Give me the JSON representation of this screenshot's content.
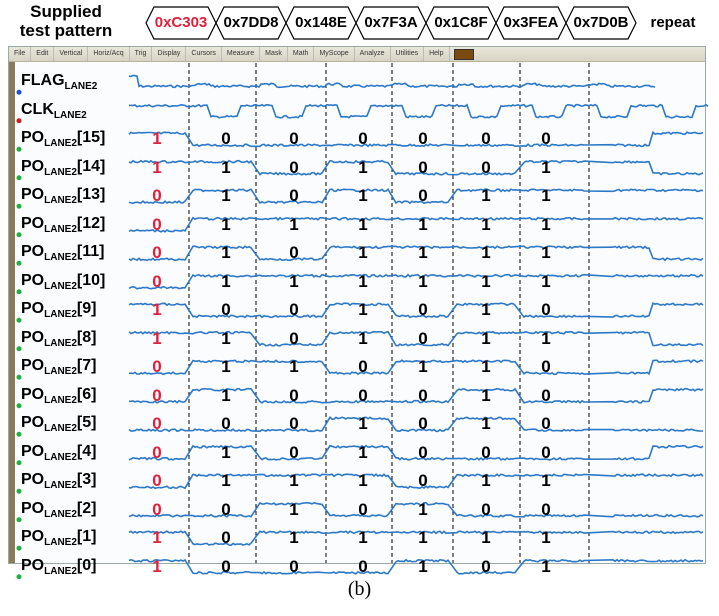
{
  "header": {
    "line1": "Supplied",
    "line2": "test pattern"
  },
  "patterns": [
    {
      "label": "0xC303",
      "color": "#e0203a"
    },
    {
      "label": "0x7DD8",
      "color": "#000000"
    },
    {
      "label": "0x148E",
      "color": "#000000"
    },
    {
      "label": "0x7F3A",
      "color": "#000000"
    },
    {
      "label": "0x1C8F",
      "color": "#000000"
    },
    {
      "label": "0x3FEA",
      "color": "#000000"
    },
    {
      "label": "0x7D0B",
      "color": "#000000"
    },
    {
      "label": "repeat",
      "color": "#000000"
    }
  ],
  "menu": [
    "File",
    "Edit",
    "Vertical",
    "Horiz/Acq",
    "Trig",
    "Display",
    "Cursors",
    "Measure",
    "Mask",
    "Math",
    "MyScope",
    "Analyze",
    "Utilities",
    "Help"
  ],
  "signals": [
    {
      "name": "FLAG",
      "sub": "LANE2",
      "suffix": ""
    },
    {
      "name": "CLK",
      "sub": "LANE2",
      "suffix": ""
    },
    {
      "name": "PO",
      "sub": "LANE2",
      "suffix": "[15]",
      "bits": [
        "1",
        "0",
        "0",
        "0",
        "0",
        "0",
        "0"
      ]
    },
    {
      "name": "PO",
      "sub": "LANE2",
      "suffix": "[14]",
      "bits": [
        "1",
        "1",
        "0",
        "1",
        "0",
        "0",
        "1"
      ]
    },
    {
      "name": "PO",
      "sub": "LANE2",
      "suffix": "[13]",
      "bits": [
        "0",
        "1",
        "0",
        "1",
        "0",
        "1",
        "1"
      ]
    },
    {
      "name": "PO",
      "sub": "LANE2",
      "suffix": "[12]",
      "bits": [
        "0",
        "1",
        "1",
        "1",
        "1",
        "1",
        "1"
      ]
    },
    {
      "name": "PO",
      "sub": "LANE2",
      "suffix": "[11]",
      "bits": [
        "0",
        "1",
        "0",
        "1",
        "1",
        "1",
        "1"
      ]
    },
    {
      "name": "PO",
      "sub": "LANE2",
      "suffix": "[10]",
      "bits": [
        "0",
        "1",
        "1",
        "1",
        "1",
        "1",
        "1"
      ]
    },
    {
      "name": "PO",
      "sub": "LANE2",
      "suffix": "[9]",
      "bits": [
        "1",
        "0",
        "0",
        "1",
        "0",
        "1",
        "0"
      ]
    },
    {
      "name": "PO",
      "sub": "LANE2",
      "suffix": "[8]",
      "bits": [
        "1",
        "1",
        "0",
        "1",
        "0",
        "1",
        "1"
      ]
    },
    {
      "name": "PO",
      "sub": "LANE2",
      "suffix": "[7]",
      "bits": [
        "0",
        "1",
        "1",
        "0",
        "1",
        "1",
        "0"
      ]
    },
    {
      "name": "PO",
      "sub": "LANE2",
      "suffix": "[6]",
      "bits": [
        "0",
        "1",
        "0",
        "0",
        "0",
        "1",
        "0"
      ]
    },
    {
      "name": "PO",
      "sub": "LANE2",
      "suffix": "[5]",
      "bits": [
        "0",
        "0",
        "0",
        "1",
        "0",
        "1",
        "0"
      ]
    },
    {
      "name": "PO",
      "sub": "LANE2",
      "suffix": "[4]",
      "bits": [
        "0",
        "1",
        "0",
        "1",
        "0",
        "0",
        "0"
      ]
    },
    {
      "name": "PO",
      "sub": "LANE2",
      "suffix": "[3]",
      "bits": [
        "0",
        "1",
        "1",
        "1",
        "0",
        "1",
        "1"
      ]
    },
    {
      "name": "PO",
      "sub": "LANE2",
      "suffix": "[2]",
      "bits": [
        "0",
        "0",
        "1",
        "0",
        "1",
        "0",
        "0"
      ]
    },
    {
      "name": "PO",
      "sub": "LANE2",
      "suffix": "[1]",
      "bits": [
        "1",
        "0",
        "1",
        "1",
        "1",
        "1",
        "1"
      ]
    },
    {
      "name": "PO",
      "sub": "LANE2",
      "suffix": "[0]",
      "bits": [
        "1",
        "0",
        "0",
        "0",
        "1",
        "0",
        "1"
      ]
    }
  ],
  "caption": "(b)",
  "colors": {
    "trace": "#2c78c8",
    "first_bit": "#e0203a",
    "grid": "#000000"
  }
}
